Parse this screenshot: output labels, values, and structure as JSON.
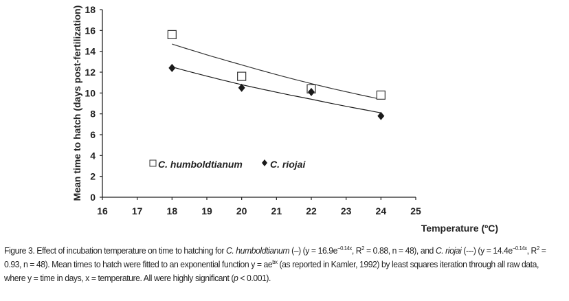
{
  "chart_data": {
    "type": "scatter",
    "xlabel": "Temperature (ºC)",
    "ylabel": "Mean time to hatch (days post-fertilization)",
    "xlim": [
      16,
      25
    ],
    "ylim": [
      0,
      18
    ],
    "xticks": [
      "16",
      "17",
      "18",
      "19",
      "20",
      "21",
      "22",
      "23",
      "24",
      "25"
    ],
    "yticks": [
      "0",
      "2",
      "4",
      "6",
      "8",
      "10",
      "12",
      "14",
      "16",
      "18"
    ],
    "grid": false,
    "legend_position": "lower-left",
    "series": [
      {
        "name": "C. humboldtianum",
        "marker": "open-square",
        "color": "#333333",
        "x": [
          18,
          20,
          22,
          24
        ],
        "y": [
          15.6,
          11.6,
          10.4,
          9.8
        ],
        "fit": {
          "x": [
            18,
            20,
            22,
            24
          ],
          "y": [
            14.7,
            12.7,
            10.9,
            9.4
          ]
        }
      },
      {
        "name": "C. riojai",
        "marker": "filled-diamond",
        "color": "#1a1a1a",
        "x": [
          18,
          20,
          22,
          24
        ],
        "y": [
          12.4,
          10.5,
          10.1,
          7.8
        ],
        "fit": {
          "x": [
            18,
            20,
            22,
            24
          ],
          "y": [
            12.5,
            10.8,
            9.4,
            8.1
          ]
        }
      }
    ]
  },
  "caption": {
    "p0": "Figure 3. Effect of incubation temperature on time to hatching for ",
    "p1": "C. humboldtianum",
    "p2": " (–) (y = 16.9e",
    "p3": "−0.14x",
    "p4": ", R",
    "p5": "2",
    "p6": " = 0.88, n = 48), and ",
    "p7": "C. riojai",
    "p8": " (---) (y = 14.4e",
    "p9": "−0.14x",
    "p10": ", R",
    "p11": "2",
    "p12": " = 0.93, n = 48). Mean times to hatch were fitted to an exponential function y = ae",
    "p13": "bx",
    "p14": " (as reported in Kamler, 1992) by least squares iteration through all raw data, where y = time in days, x = temperature. All were highly significant (",
    "p15": "p",
    "p16": " < 0.001)."
  }
}
